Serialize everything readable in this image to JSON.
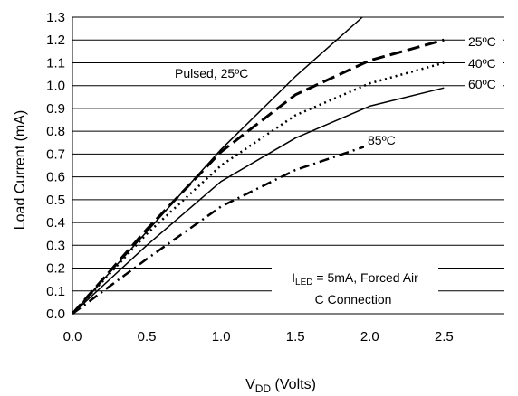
{
  "chart_data": {
    "type": "line",
    "xlabel_main": "V",
    "xlabel_sub": "DD",
    "xlabel_rest": " (Volts)",
    "ylabel": "Load Current (mA)",
    "xlim": [
      0,
      2.9
    ],
    "ylim": [
      0,
      1.3
    ],
    "xticks": [
      "0.0",
      "0.5",
      "1.0",
      "1.5",
      "2.0",
      "2.5"
    ],
    "yticks": [
      "0.0",
      "0.1",
      "0.2",
      "0.3",
      "0.4",
      "0.5",
      "0.6",
      "0.7",
      "0.8",
      "0.9",
      "1.0",
      "1.1",
      "1.2",
      "1.3"
    ],
    "grid": "horizontal",
    "annotations": {
      "pulsed": "Pulsed, 25ºC",
      "iled_main": "I",
      "iled_sub": "LED",
      "iled_rest": " = 5mA, Forced Air",
      "connection": "C Connection"
    },
    "series": [
      {
        "name": "Pulsed, 25ºC",
        "style": "solid",
        "x": [
          0,
          0.5,
          1.0,
          1.5,
          1.95
        ],
        "y": [
          0,
          0.36,
          0.72,
          1.04,
          1.3
        ]
      },
      {
        "name": "25ºC",
        "style": "longdash",
        "x": [
          0,
          0.5,
          1.0,
          1.5,
          2.0,
          2.5
        ],
        "y": [
          0,
          0.37,
          0.71,
          0.96,
          1.11,
          1.2
        ]
      },
      {
        "name": "40ºC",
        "style": "dotted",
        "x": [
          0,
          0.5,
          1.0,
          1.5,
          2.0,
          2.5
        ],
        "y": [
          0,
          0.35,
          0.65,
          0.87,
          1.01,
          1.1
        ]
      },
      {
        "name": "60ºC",
        "style": "solid",
        "x": [
          0,
          0.5,
          1.0,
          1.5,
          2.0,
          2.5
        ],
        "y": [
          0,
          0.3,
          0.58,
          0.77,
          0.91,
          0.99
        ]
      },
      {
        "name": "85ºC",
        "style": "dashdot",
        "x": [
          0,
          0.5,
          1.0,
          1.5,
          2.0
        ],
        "y": [
          0,
          0.24,
          0.47,
          0.63,
          0.74
        ]
      }
    ],
    "series_labels": [
      "25ºC",
      "40ºC",
      "60ºC",
      "85ºC"
    ]
  }
}
